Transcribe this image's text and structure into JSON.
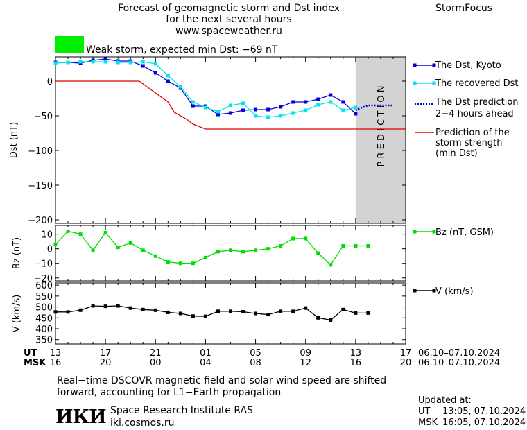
{
  "header": {
    "title_line1": "Forecast of geomagnetic storm and Dst index",
    "title_line2": "for the next several hours",
    "website": "www.spaceweather.ru",
    "brand": "StormFocus",
    "storm_label": "Weak storm, expected min Dst: −69 nT",
    "storm_color": "#00ee00"
  },
  "time_axis": {
    "ut_label": "UT",
    "msk_label": "MSK",
    "ut_ticks": [
      "13",
      "17",
      "21",
      "01",
      "05",
      "09",
      "13",
      "17"
    ],
    "msk_ticks": [
      "16",
      "20",
      "00",
      "04",
      "08",
      "12",
      "16",
      "20"
    ],
    "ut_range": "06.10–07.10.2024",
    "msk_range": "06.10–07.10.2024"
  },
  "footer": {
    "note_line1": "Real−time DSCOVR magnetic field and solar wind speed are shifted",
    "note_line2": "forward, accounting for L1−Earth propagation",
    "logo_text": "ИКИ",
    "institute": "Space Research Institute RAS",
    "institute_site": "iki.cosmos.ru",
    "updated_label": "Updated at:",
    "updated_ut_label": "UT",
    "updated_ut": "13:05, 07.10.2024",
    "updated_msk_label": "MSK",
    "updated_msk": "16:05, 07.10.2024"
  },
  "chart_data": [
    {
      "type": "line",
      "name": "dst-panel",
      "ylabel": "Dst (nT)",
      "xlim": [
        0,
        28
      ],
      "ylim": [
        -205,
        35
      ],
      "yticks": [
        0,
        -50,
        -100,
        -150,
        -200
      ],
      "ytick_labels": [
        "0",
        "−50",
        "−100",
        "−150",
        "−200"
      ],
      "prediction_label": "P R E D I C T I O N",
      "prediction_region": [
        24,
        28
      ],
      "prediction_color": "#d3d3d3",
      "series": [
        {
          "name": "The Dst, Kyoto",
          "color": "#0000dd",
          "marker": "square",
          "x": [
            0,
            1,
            2,
            3,
            4,
            5,
            6,
            7,
            8,
            9,
            10,
            11,
            12,
            13,
            14,
            15,
            16,
            17,
            18,
            19,
            20,
            21,
            22,
            23,
            24
          ],
          "y": [
            27,
            27,
            26,
            30,
            32,
            29,
            29,
            22,
            12,
            0,
            -10,
            -36,
            -36,
            -48,
            -46,
            -42,
            -41,
            -41,
            -37,
            -30,
            -30,
            -26,
            -20,
            -30,
            -47
          ]
        },
        {
          "name": "The recovered Dst",
          "color": "#00e5ee",
          "marker": "square",
          "x": [
            0,
            1,
            2,
            3,
            4,
            5,
            6,
            7,
            8,
            9,
            10,
            11,
            12,
            13,
            14,
            15,
            16,
            17,
            18,
            19,
            20,
            21,
            22,
            23,
            24
          ],
          "y": [
            26,
            27,
            28,
            28,
            28,
            27,
            27,
            28,
            25,
            8,
            -8,
            -30,
            -38,
            -44,
            -35,
            -32,
            -50,
            -52,
            -50,
            -46,
            -42,
            -34,
            -30,
            -42,
            -38
          ]
        },
        {
          "name": "The Dst prediction 2−4 hours ahead",
          "color": "#0000ee",
          "style": "dotted",
          "x": [
            24,
            24.5,
            25,
            26,
            27
          ],
          "y": [
            -42,
            -38,
            -35,
            -35,
            -35
          ]
        },
        {
          "name": "Prediction of the storm strength (min Dst)",
          "color": "#dd0000",
          "x": [
            0,
            6.7,
            9,
            9.5,
            10.5,
            11,
            12,
            28
          ],
          "y": [
            0,
            0,
            -30,
            -45,
            -55,
            -62,
            -69,
            -69
          ]
        }
      ],
      "legend": [
        {
          "text": "The Dst, Kyoto"
        },
        {
          "text": "The recovered Dst"
        },
        {
          "text": "The Dst prediction",
          "text2": "2−4 hours ahead"
        },
        {
          "text": "Prediction of the",
          "text2": "storm strength",
          "text3": "(min Dst)"
        }
      ]
    },
    {
      "type": "line",
      "name": "bz-panel",
      "ylabel": "Bz (nT)",
      "xlim": [
        0,
        28
      ],
      "ylim": [
        -22,
        16
      ],
      "yticks": [
        10,
        0,
        -10,
        -20
      ],
      "ytick_labels": [
        "10",
        "0",
        "−10",
        "−20"
      ],
      "series": [
        {
          "name": "Bz (nT, GSM)",
          "color": "#00dd00",
          "marker": "square",
          "x": [
            0,
            1,
            2,
            3,
            4,
            5,
            6,
            7,
            8,
            9,
            10,
            11,
            12,
            13,
            14,
            15,
            16,
            17,
            18,
            19,
            20,
            21,
            22,
            23,
            24,
            25
          ],
          "y": [
            3,
            12,
            10,
            -1,
            11,
            1,
            4,
            -1,
            -5,
            -9,
            -10,
            -10,
            -6,
            -2,
            -1,
            -2,
            -1,
            0,
            2,
            7,
            7,
            -3,
            -11,
            2,
            2,
            2
          ]
        }
      ]
    },
    {
      "type": "line",
      "name": "v-panel",
      "ylabel": "V (km/s)",
      "xlim": [
        0,
        28
      ],
      "ylim": [
        330,
        610
      ],
      "yticks": [
        600,
        550,
        500,
        450,
        400,
        350
      ],
      "ytick_labels": [
        "600",
        "550",
        "500",
        "450",
        "400",
        "350"
      ],
      "series": [
        {
          "name": "V (km/s)",
          "color": "#000000",
          "marker": "square",
          "x": [
            0,
            1,
            2,
            3,
            4,
            5,
            6,
            7,
            8,
            9,
            10,
            11,
            12,
            13,
            14,
            15,
            16,
            17,
            18,
            19,
            20,
            21,
            22,
            23,
            24,
            25
          ],
          "y": [
            477,
            477,
            485,
            505,
            503,
            505,
            495,
            488,
            485,
            475,
            470,
            458,
            457,
            480,
            480,
            478,
            470,
            465,
            480,
            480,
            495,
            450,
            440,
            488,
            472,
            472
          ]
        }
      ]
    }
  ]
}
